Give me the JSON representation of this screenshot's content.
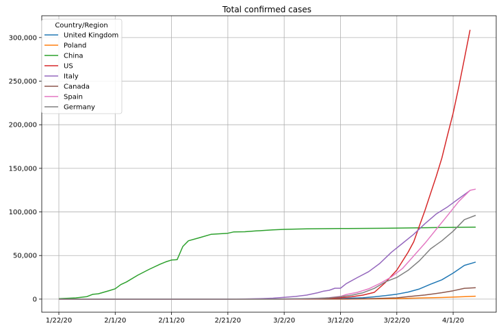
{
  "chart_data": {
    "type": "line",
    "title": "Total confirmed cases",
    "xlabel": "",
    "ylabel": "",
    "x_ticks": [
      "1/22/20",
      "2/1/20",
      "2/11/20",
      "2/21/20",
      "3/2/20",
      "3/12/20",
      "3/22/20",
      "4/1/20"
    ],
    "x_range": [
      "1/22/20",
      "4/5/20"
    ],
    "y_ticks": [
      "0",
      "50,000",
      "100,000",
      "150,000",
      "200,000",
      "250,000",
      "300,000"
    ],
    "ylim": [
      -15000,
      325000
    ],
    "grid": true,
    "legend": {
      "title": "Country/Region",
      "placement": "top-left"
    },
    "series": [
      {
        "name": "United Kingdom",
        "color": "#1f77b4",
        "points": [
          [
            "1/22/20",
            0
          ],
          [
            "2/21/20",
            9
          ],
          [
            "3/1/20",
            36
          ],
          [
            "3/5/20",
            115
          ],
          [
            "3/8/20",
            273
          ],
          [
            "3/10/20",
            382
          ],
          [
            "3/12/20",
            590
          ],
          [
            "3/14/20",
            1140
          ],
          [
            "3/16/20",
            1543
          ],
          [
            "3/18/20",
            2642
          ],
          [
            "3/20/20",
            4014
          ],
          [
            "3/22/20",
            5683
          ],
          [
            "3/24/20",
            8077
          ],
          [
            "3/26/20",
            11658
          ],
          [
            "3/28/20",
            17089
          ],
          [
            "3/30/20",
            22141
          ],
          [
            "4/1/20",
            29865
          ],
          [
            "4/3/20",
            38689
          ],
          [
            "4/5/20",
            42500
          ]
        ]
      },
      {
        "name": "Poland",
        "color": "#ff7f0e",
        "points": [
          [
            "1/22/20",
            0
          ],
          [
            "3/4/20",
            1
          ],
          [
            "3/10/20",
            22
          ],
          [
            "3/14/20",
            111
          ],
          [
            "3/18/20",
            287
          ],
          [
            "3/22/20",
            634
          ],
          [
            "3/26/20",
            1221
          ],
          [
            "3/30/20",
            1905
          ],
          [
            "4/2/20",
            2554
          ],
          [
            "4/5/20",
            3383
          ]
        ]
      },
      {
        "name": "China",
        "color": "#2ca02c",
        "points": [
          [
            "1/22/20",
            548
          ],
          [
            "1/25/20",
            1406
          ],
          [
            "1/27/20",
            2877
          ],
          [
            "1/28/20",
            5509
          ],
          [
            "1/29/20",
            6087
          ],
          [
            "1/31/20",
            9802
          ],
          [
            "2/1/20",
            11891
          ],
          [
            "2/2/20",
            16630
          ],
          [
            "2/3/20",
            19716
          ],
          [
            "2/5/20",
            27440
          ],
          [
            "2/7/20",
            34110
          ],
          [
            "2/9/20",
            40150
          ],
          [
            "2/10/20",
            42762
          ],
          [
            "2/11/20",
            44802
          ],
          [
            "2/12/20",
            45221
          ],
          [
            "2/13/20",
            60368
          ],
          [
            "2/14/20",
            66885
          ],
          [
            "2/16/20",
            70513
          ],
          [
            "2/18/20",
            74280
          ],
          [
            "2/20/20",
            75077
          ],
          [
            "2/21/20",
            75550
          ],
          [
            "2/22/20",
            77001
          ],
          [
            "2/24/20",
            77262
          ],
          [
            "2/26/20",
            78191
          ],
          [
            "2/29/20",
            79356
          ],
          [
            "3/2/20",
            80026
          ],
          [
            "3/6/20",
            80573
          ],
          [
            "3/12/20",
            80932
          ],
          [
            "3/20/20",
            81250
          ],
          [
            "3/27/20",
            81897
          ],
          [
            "4/5/20",
            82602
          ]
        ]
      },
      {
        "name": "US",
        "color": "#d62728",
        "points": [
          [
            "1/22/20",
            1
          ],
          [
            "2/29/20",
            68
          ],
          [
            "3/5/20",
            217
          ],
          [
            "3/8/20",
            537
          ],
          [
            "3/10/20",
            1000
          ],
          [
            "3/12/20",
            1663
          ],
          [
            "3/14/20",
            2727
          ],
          [
            "3/16/20",
            4632
          ],
          [
            "3/18/20",
            7783
          ],
          [
            "3/20/20",
            19273
          ],
          [
            "3/22/20",
            33272
          ],
          [
            "3/24/20",
            53740
          ],
          [
            "3/25/20",
            65778
          ],
          [
            "3/26/20",
            83836
          ],
          [
            "3/27/20",
            101657
          ],
          [
            "3/28/20",
            121478
          ],
          [
            "3/29/20",
            140886
          ],
          [
            "3/30/20",
            161807
          ],
          [
            "3/31/20",
            188172
          ],
          [
            "4/1/20",
            213372
          ],
          [
            "4/2/20",
            243453
          ],
          [
            "4/3/20",
            275586
          ],
          [
            "4/4/20",
            308850
          ]
        ]
      },
      {
        "name": "Italy",
        "color": "#9467bd",
        "points": [
          [
            "1/22/20",
            0
          ],
          [
            "2/21/20",
            20
          ],
          [
            "2/24/20",
            229
          ],
          [
            "2/27/20",
            655
          ],
          [
            "2/29/20",
            1128
          ],
          [
            "3/2/20",
            2036
          ],
          [
            "3/4/20",
            3089
          ],
          [
            "3/6/20",
            4636
          ],
          [
            "3/8/20",
            7375
          ],
          [
            "3/9/20",
            9172
          ],
          [
            "3/10/20",
            10149
          ],
          [
            "3/11/20",
            12462
          ],
          [
            "3/12/20",
            12462
          ],
          [
            "3/13/20",
            17660
          ],
          [
            "3/15/20",
            24747
          ],
          [
            "3/17/20",
            31506
          ],
          [
            "3/19/20",
            41035
          ],
          [
            "3/21/20",
            53578
          ],
          [
            "3/23/20",
            63927
          ],
          [
            "3/25/20",
            74386
          ],
          [
            "3/27/20",
            86498
          ],
          [
            "3/29/20",
            97689
          ],
          [
            "3/31/20",
            105792
          ],
          [
            "4/2/20",
            115242
          ],
          [
            "4/4/20",
            124632
          ]
        ]
      },
      {
        "name": "Canada",
        "color": "#8c564b",
        "points": [
          [
            "1/22/20",
            0
          ],
          [
            "3/1/20",
            24
          ],
          [
            "3/10/20",
            79
          ],
          [
            "3/14/20",
            252
          ],
          [
            "3/18/20",
            727
          ],
          [
            "3/22/20",
            1465
          ],
          [
            "3/24/20",
            2792
          ],
          [
            "3/27/20",
            4675
          ],
          [
            "3/30/20",
            7398
          ],
          [
            "4/1/20",
            9560
          ],
          [
            "4/3/20",
            12437
          ],
          [
            "4/5/20",
            13100
          ]
        ]
      },
      {
        "name": "Spain",
        "color": "#e377c2",
        "points": [
          [
            "1/22/20",
            0
          ],
          [
            "2/29/20",
            45
          ],
          [
            "3/4/20",
            222
          ],
          [
            "3/8/20",
            673
          ],
          [
            "3/10/20",
            1695
          ],
          [
            "3/12/20",
            3146
          ],
          [
            "3/13/20",
            5232
          ],
          [
            "3/15/20",
            7798
          ],
          [
            "3/17/20",
            11748
          ],
          [
            "3/19/20",
            17963
          ],
          [
            "3/21/20",
            25374
          ],
          [
            "3/23/20",
            35136
          ],
          [
            "3/25/20",
            49515
          ],
          [
            "3/27/20",
            64059
          ],
          [
            "3/29/20",
            80110
          ],
          [
            "3/31/20",
            95923
          ],
          [
            "4/2/20",
            112065
          ],
          [
            "4/4/20",
            124736
          ],
          [
            "4/5/20",
            126168
          ]
        ]
      },
      {
        "name": "Germany",
        "color": "#7f7f7f",
        "points": [
          [
            "1/22/20",
            0
          ],
          [
            "2/25/20",
            16
          ],
          [
            "3/1/20",
            130
          ],
          [
            "3/5/20",
            482
          ],
          [
            "3/8/20",
            1040
          ],
          [
            "3/10/20",
            1457
          ],
          [
            "3/12/20",
            2745
          ],
          [
            "3/14/20",
            4585
          ],
          [
            "3/16/20",
            7272
          ],
          [
            "3/18/20",
            12327
          ],
          [
            "3/20/20",
            19848
          ],
          [
            "3/22/20",
            24873
          ],
          [
            "3/24/20",
            32986
          ],
          [
            "3/26/20",
            43938
          ],
          [
            "3/28/20",
            57695
          ],
          [
            "3/30/20",
            66885
          ],
          [
            "4/1/20",
            77872
          ],
          [
            "4/3/20",
            91159
          ],
          [
            "4/5/20",
            96092
          ]
        ]
      }
    ]
  }
}
